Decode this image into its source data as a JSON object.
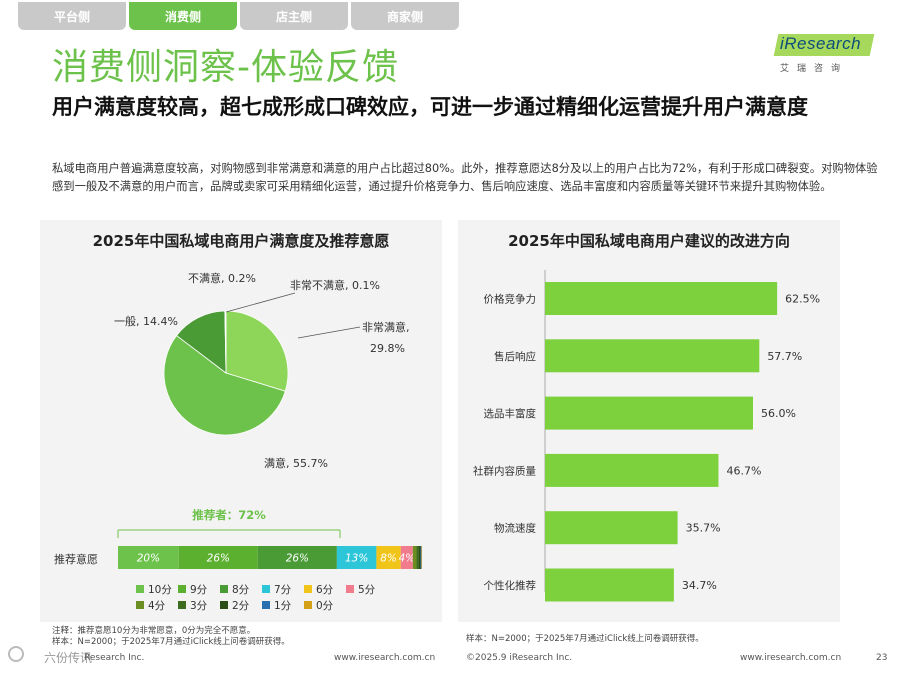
{
  "tabs": [
    {
      "label": "平台侧",
      "active": false
    },
    {
      "label": "消费侧",
      "active": true
    },
    {
      "label": "店主侧",
      "active": false
    },
    {
      "label": "商家侧",
      "active": false
    }
  ],
  "logo": {
    "name": "iResearch",
    "sub": "艾瑞咨询"
  },
  "title": "消费侧洞察-体验反馈",
  "subtitle": "用户满意度较高，超七成形成口碑效应，可进一步通过精细化运营提升用户满意度",
  "description": "私域电商用户普遍满意度较高，对购物感到非常满意和满意的用户占比超过80%。此外，推荐意愿达8分及以上的用户占比为72%，有利于形成口碑裂变。对购物体验感到一般及不满意的用户而言，品牌或卖家可采用精细化运营，通过提升价格竞争力、售后响应速度、选品丰富度和内容质量等关键环节来提升其购物体验。",
  "colors": {
    "green": "#6cc24a",
    "green_light": "#8ed65a",
    "green_mid": "#5cb030",
    "green_dark": "#3f8a2c",
    "bg_panel": "#f3f3f3"
  },
  "chart_data": [
    {
      "type": "pie",
      "title": "2025年中国私域电商用户满意度及推荐意愿",
      "slices": [
        {
          "label": "非常满意",
          "value": 29.8,
          "text": "非常满意,",
          "value_text": "29.8%",
          "color": "#8ed65a"
        },
        {
          "label": "满意",
          "value": 55.7,
          "text": "满意, 55.7%",
          "color": "#6cc24a"
        },
        {
          "label": "一般",
          "value": 14.4,
          "text": "一般, 14.4%",
          "color": "#4a9a36"
        },
        {
          "label": "不满意",
          "value": 0.2,
          "text": "不满意, 0.2%",
          "color": "#3f8a2c"
        },
        {
          "label": "非常不满意",
          "value": 0.1,
          "text": "非常不满意, 0.1%",
          "color": "#2e6e22"
        }
      ]
    },
    {
      "type": "bar",
      "orientation": "stacked-horizontal",
      "row_label": "推荐意愿",
      "promoter_label": "推荐者：72%",
      "segments": [
        {
          "label": "10分",
          "value": 20,
          "text": "20%",
          "color": "#6cc24a"
        },
        {
          "label": "9分",
          "value": 26,
          "text": "26%",
          "color": "#5cb030"
        },
        {
          "label": "8分",
          "value": 26,
          "text": "26%",
          "color": "#4a9a36"
        },
        {
          "label": "7分",
          "value": 13,
          "text": "13%",
          "color": "#2cc6d8"
        },
        {
          "label": "6分",
          "value": 8,
          "text": "8%",
          "color": "#f0c419"
        },
        {
          "label": "5分",
          "value": 4,
          "text": "4%",
          "color": "#ef7b8c"
        },
        {
          "label": "4分",
          "value": 1.2,
          "text": "",
          "color": "#6b8e23"
        },
        {
          "label": "3分",
          "value": 0.8,
          "text": "",
          "color": "#3d6b1f"
        },
        {
          "label": "2分",
          "value": 0.5,
          "text": "",
          "color": "#2b4f17"
        },
        {
          "label": "1分",
          "value": 0.3,
          "text": "",
          "color": "#2a6fb0"
        },
        {
          "label": "0分",
          "value": 0.2,
          "text": "",
          "color": "#d4a017"
        }
      ]
    },
    {
      "type": "bar",
      "orientation": "horizontal",
      "title": "2025年中国私域电商用户建议的改进方向",
      "categories": [
        "价格竞争力",
        "售后响应",
        "选品丰富度",
        "社群内容质量",
        "物流速度",
        "个性化推荐"
      ],
      "values": [
        62.5,
        57.7,
        56.0,
        46.7,
        35.7,
        34.7
      ],
      "value_labels": [
        "62.5%",
        "57.7%",
        "56.0%",
        "46.7%",
        "35.7%",
        "34.7%"
      ],
      "xlim": [
        0,
        70
      ],
      "color": "#7dd13c"
    }
  ],
  "notes": {
    "left_1": "注释：推荐意愿10分为非常愿意，0分为完全不愿意。",
    "left_2": "样本：N=2000；于2025年7月通过iClick线上问卷调研获得。",
    "right": "样本：N=2000；于2025年7月通过iClick线上问卷调研获得。"
  },
  "footer": {
    "left_copyright": "Research Inc.",
    "left_url": "www.iresearch.com.cn",
    "right_copyright": "©2025.9 iResearch Inc.",
    "right_url": "www.iresearch.com.cn",
    "page": "23",
    "watermark": "六份传讯"
  }
}
